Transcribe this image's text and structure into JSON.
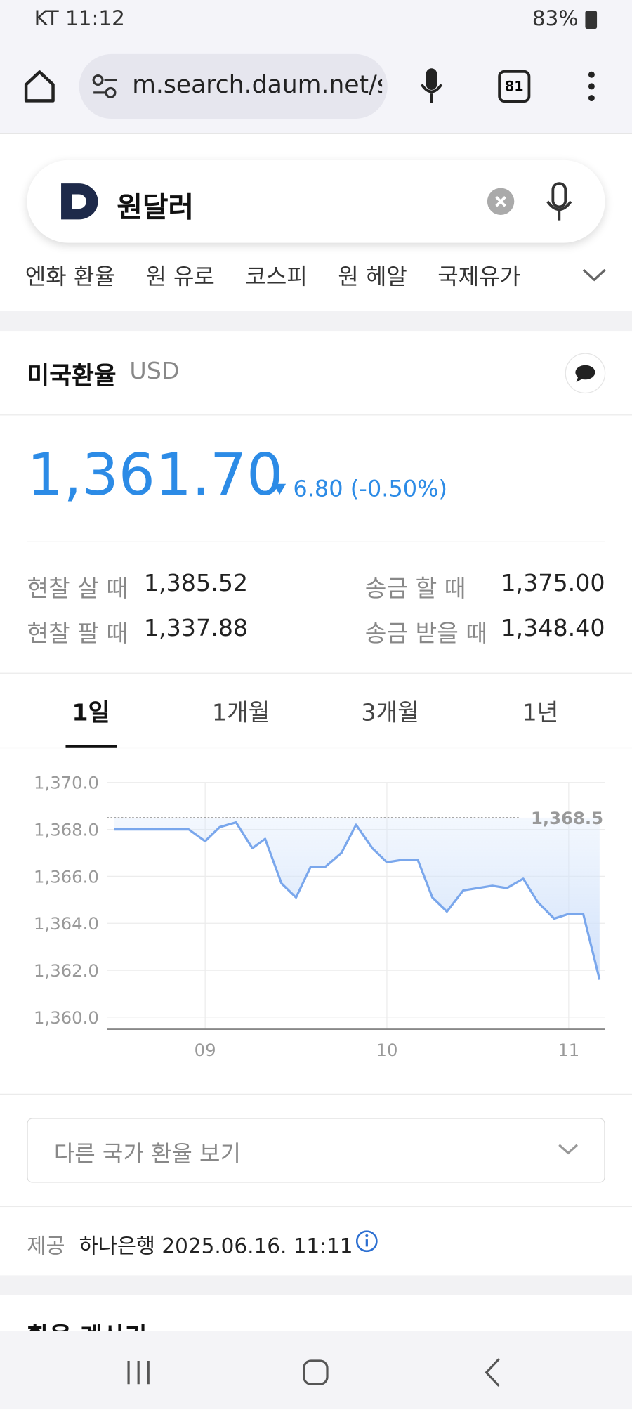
{
  "status": {
    "carrier_time": "KT 11:12",
    "battery": "83%"
  },
  "browser": {
    "url": "m.search.daum.net/s",
    "tabs": "81"
  },
  "search": {
    "query": "원달러"
  },
  "related": [
    "엔화 환율",
    "원 유로",
    "코스피",
    "원 헤알",
    "국제유가"
  ],
  "card": {
    "title": "미국환율",
    "currency": "USD",
    "price": "1,361.70",
    "change": "6.80 (-0.50%)",
    "rows": [
      [
        "현찰 살 때",
        "1,385.52",
        "송금 할 때",
        "1,375.00"
      ],
      [
        "현찰 팔 때",
        "1,337.88",
        "송금 받을 때",
        "1,348.40"
      ]
    ],
    "periods": [
      "1일",
      "1개월",
      "3개월",
      "1년"
    ]
  },
  "chart_data": {
    "type": "line",
    "color": "#7aa7ec",
    "x": [
      8.5,
      8.91,
      9.0,
      9.08,
      9.17,
      9.26,
      9.33,
      9.42,
      9.5,
      9.58,
      9.66,
      9.75,
      9.83,
      9.92,
      10.0,
      10.08,
      10.17,
      10.25,
      10.33,
      10.42,
      10.58,
      10.66,
      10.75,
      10.83,
      10.92,
      11.0,
      11.08,
      11.17
    ],
    "values": [
      1368.0,
      1368.0,
      1367.5,
      1368.1,
      1368.3,
      1367.2,
      1367.6,
      1365.7,
      1365.1,
      1366.4,
      1366.4,
      1367.0,
      1368.2,
      1367.2,
      1366.6,
      1366.7,
      1366.7,
      1365.1,
      1364.5,
      1365.4,
      1365.6,
      1365.5,
      1365.9,
      1364.9,
      1364.2,
      1364.4,
      1364.4,
      1361.6
    ],
    "xlim": [
      8.46,
      11.2
    ],
    "ylim": [
      1359.5,
      1370
    ],
    "xticks": [
      {
        "value": 9,
        "label": "09"
      },
      {
        "value": 10,
        "label": "10"
      },
      {
        "value": 11,
        "label": "11"
      }
    ],
    "yticks": [
      {
        "value": 1360,
        "label": "1,360.0"
      },
      {
        "value": 1362,
        "label": "1,362.0"
      },
      {
        "value": 1364,
        "label": "1,364.0"
      },
      {
        "value": 1366,
        "label": "1,366.0"
      },
      {
        "value": 1368,
        "label": "1,368.0"
      },
      {
        "value": 1370,
        "label": "1,370.0"
      }
    ],
    "reference": {
      "value": 1368.5,
      "label": "1,368.5"
    },
    "grid": true
  },
  "other": {
    "dropdown": "다른 국가 환율 보기",
    "source_label": "제공",
    "source": "하나은행 2025.06.16. 11:11",
    "next_title": "환율 계산기"
  }
}
